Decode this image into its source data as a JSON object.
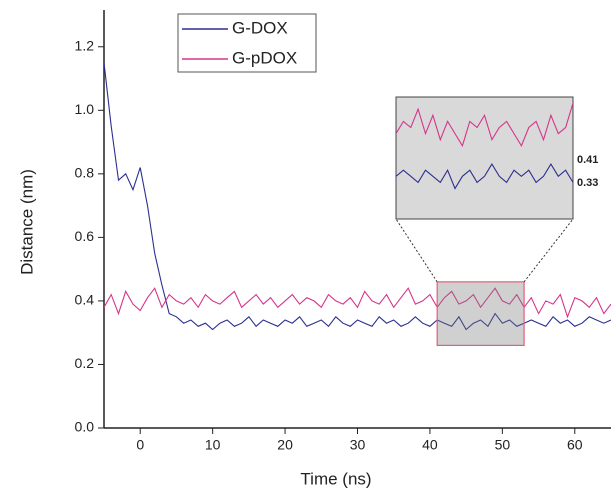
{
  "chart_data": [
    {
      "type": "line",
      "xlabel": "Time (ns)",
      "ylabel": "Distance (nm)",
      "x": [
        -5,
        -4,
        -3,
        -2,
        -1,
        0,
        1,
        2,
        3,
        4,
        5,
        6,
        7,
        8,
        9,
        10,
        11,
        12,
        13,
        14,
        15,
        16,
        17,
        18,
        19,
        20,
        21,
        22,
        23,
        24,
        25,
        26,
        27,
        28,
        29,
        30,
        31,
        32,
        33,
        34,
        35,
        36,
        37,
        38,
        39,
        40,
        41,
        42,
        43,
        44,
        45,
        46,
        47,
        48,
        49,
        50,
        51,
        52,
        53,
        54,
        55,
        56,
        57,
        58,
        59,
        60,
        61,
        62,
        63,
        64,
        65
      ],
      "series": [
        {
          "name": "G-DOX",
          "color": "#2b2f8f",
          "values": [
            1.15,
            0.95,
            0.78,
            0.8,
            0.75,
            0.82,
            0.7,
            0.55,
            0.45,
            0.36,
            0.35,
            0.33,
            0.34,
            0.32,
            0.33,
            0.31,
            0.33,
            0.34,
            0.32,
            0.33,
            0.35,
            0.32,
            0.34,
            0.33,
            0.32,
            0.34,
            0.33,
            0.35,
            0.32,
            0.33,
            0.34,
            0.32,
            0.35,
            0.33,
            0.32,
            0.34,
            0.33,
            0.32,
            0.35,
            0.33,
            0.34,
            0.32,
            0.33,
            0.35,
            0.33,
            0.32,
            0.34,
            0.33,
            0.32,
            0.35,
            0.31,
            0.33,
            0.34,
            0.32,
            0.36,
            0.33,
            0.34,
            0.32,
            0.33,
            0.34,
            0.33,
            0.32,
            0.35,
            0.33,
            0.34,
            0.32,
            0.33,
            0.35,
            0.34,
            0.33,
            0.34
          ]
        },
        {
          "name": "G-pDOX",
          "color": "#d6358b",
          "values": [
            0.38,
            0.42,
            0.36,
            0.43,
            0.39,
            0.37,
            0.41,
            0.44,
            0.38,
            0.42,
            0.4,
            0.39,
            0.41,
            0.38,
            0.42,
            0.4,
            0.39,
            0.41,
            0.43,
            0.38,
            0.4,
            0.42,
            0.39,
            0.41,
            0.38,
            0.4,
            0.42,
            0.39,
            0.41,
            0.4,
            0.38,
            0.42,
            0.4,
            0.39,
            0.41,
            0.38,
            0.43,
            0.4,
            0.39,
            0.42,
            0.38,
            0.41,
            0.44,
            0.39,
            0.4,
            0.42,
            0.38,
            0.41,
            0.43,
            0.39,
            0.4,
            0.42,
            0.38,
            0.41,
            0.44,
            0.4,
            0.39,
            0.42,
            0.38,
            0.41,
            0.36,
            0.4,
            0.39,
            0.42,
            0.35,
            0.41,
            0.4,
            0.38,
            0.41,
            0.36,
            0.39
          ]
        }
      ],
      "xlim": [
        -5,
        65
      ],
      "xticks": [
        0,
        10,
        20,
        30,
        40,
        50,
        60
      ],
      "ylim": [
        0,
        1.3
      ],
      "yticks": [
        {
          "value": 0,
          "label": "0.0"
        },
        0.2,
        0.4,
        0.6,
        0.8,
        {
          "value": 1,
          "label": "1.0"
        },
        1.2
      ]
    },
    {
      "type": "line",
      "x": [
        41,
        41.5,
        42,
        42.5,
        43,
        43.5,
        44,
        44.5,
        45,
        45.5,
        46,
        46.5,
        47,
        47.5,
        48,
        48.5,
        49,
        49.5,
        50,
        50.5,
        51,
        51.5,
        52,
        52.5,
        53
      ],
      "series": [
        {
          "name": "G-DOX",
          "color": "#2b2f8f",
          "values": [
            0.33,
            0.34,
            0.33,
            0.32,
            0.34,
            0.33,
            0.32,
            0.34,
            0.31,
            0.33,
            0.34,
            0.32,
            0.33,
            0.35,
            0.33,
            0.32,
            0.34,
            0.33,
            0.34,
            0.32,
            0.33,
            0.35,
            0.33,
            0.34,
            0.32
          ]
        },
        {
          "name": "G-pDOX",
          "color": "#d6358b",
          "values": [
            0.4,
            0.42,
            0.41,
            0.44,
            0.4,
            0.43,
            0.39,
            0.42,
            0.4,
            0.38,
            0.42,
            0.41,
            0.43,
            0.39,
            0.41,
            0.42,
            0.4,
            0.38,
            0.41,
            0.42,
            0.39,
            0.43,
            0.4,
            0.41,
            0.45
          ]
        }
      ],
      "xlim": [
        41,
        53
      ],
      "ylim": [
        0.26,
        0.46
      ],
      "annotations": [
        0.41,
        0.33
      ]
    }
  ]
}
